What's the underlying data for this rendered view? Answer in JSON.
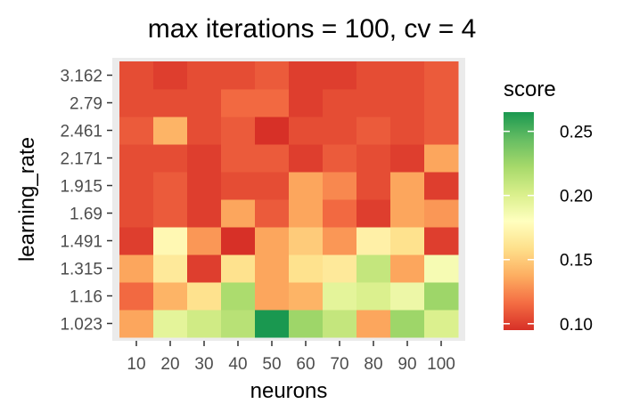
{
  "chart_data": {
    "type": "heatmap",
    "title": "max iterations = 100, cv = 4",
    "xlabel": "neurons",
    "ylabel": "learning_rate",
    "x": [
      "10",
      "20",
      "30",
      "40",
      "50",
      "60",
      "70",
      "80",
      "90",
      "100"
    ],
    "y": [
      "1.023",
      "1.16",
      "1.315",
      "1.491",
      "1.69",
      "1.915",
      "2.171",
      "2.461",
      "2.79",
      "3.162"
    ],
    "values": [
      [
        0.135,
        0.195,
        0.205,
        0.215,
        0.265,
        0.225,
        0.21,
        0.135,
        0.225,
        0.2
      ],
      [
        0.115,
        0.14,
        0.16,
        0.22,
        0.135,
        0.14,
        0.195,
        0.2,
        0.19,
        0.225
      ],
      [
        0.135,
        0.165,
        0.1,
        0.16,
        0.135,
        0.16,
        0.165,
        0.21,
        0.135,
        0.185
      ],
      [
        0.1,
        0.175,
        0.13,
        0.095,
        0.135,
        0.15,
        0.13,
        0.17,
        0.16,
        0.1
      ],
      [
        0.105,
        0.11,
        0.1,
        0.135,
        0.11,
        0.135,
        0.115,
        0.1,
        0.135,
        0.13
      ],
      [
        0.105,
        0.11,
        0.1,
        0.105,
        0.105,
        0.135,
        0.125,
        0.105,
        0.135,
        0.1
      ],
      [
        0.105,
        0.105,
        0.1,
        0.11,
        0.11,
        0.1,
        0.11,
        0.105,
        0.1,
        0.135
      ],
      [
        0.11,
        0.14,
        0.105,
        0.11,
        0.095,
        0.105,
        0.105,
        0.11,
        0.105,
        0.11
      ],
      [
        0.105,
        0.105,
        0.105,
        0.115,
        0.115,
        0.1,
        0.105,
        0.105,
        0.105,
        0.11
      ],
      [
        0.105,
        0.1,
        0.105,
        0.105,
        0.11,
        0.1,
        0.1,
        0.105,
        0.105,
        0.11
      ]
    ],
    "legend": {
      "title": "score",
      "ticks": [
        0.1,
        0.15,
        0.2,
        0.25
      ],
      "tick_labels": [
        "0.10",
        "0.15",
        "0.20",
        "0.25"
      ],
      "range": [
        0.095,
        0.265
      ],
      "placement": "right"
    },
    "colorscale": [
      "#d73027",
      "#f46d43",
      "#fdae61",
      "#fee08b",
      "#ffffbf",
      "#d9ef8b",
      "#a6d96a",
      "#66bd63",
      "#1a9850"
    ],
    "panel_background": "#ebebeb",
    "grid": false
  }
}
